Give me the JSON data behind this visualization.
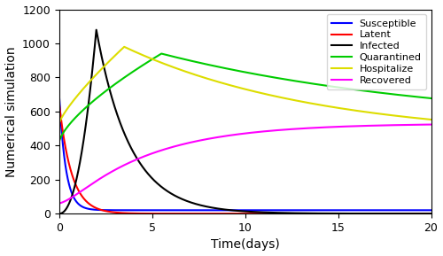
{
  "xlabel": "Time(days)",
  "ylabel": "Numerical simulation",
  "xlim": [
    0,
    20
  ],
  "ylim": [
    0,
    1200
  ],
  "yticks": [
    0,
    200,
    400,
    600,
    800,
    1000,
    1200
  ],
  "xticks": [
    0,
    5,
    10,
    15,
    20
  ],
  "colors": {
    "Susceptible": "#0000FF",
    "Latent": "#FF0000",
    "Infected": "#000000",
    "Quarantined": "#00CC00",
    "Hospitalize": "#DDDD00",
    "Recovered": "#FF00FF"
  },
  "figsize": [
    5.0,
    2.89
  ],
  "dpi": 100
}
